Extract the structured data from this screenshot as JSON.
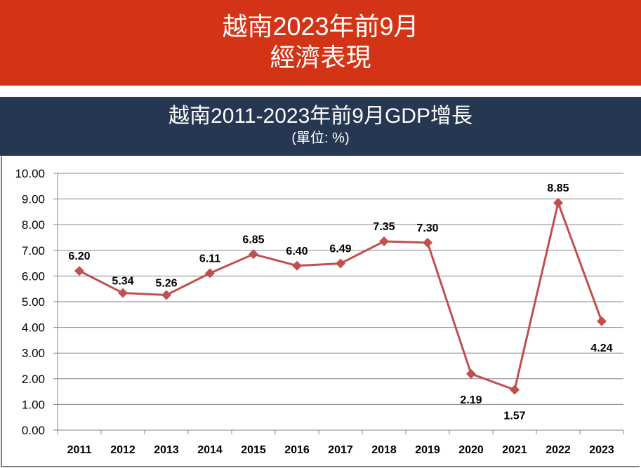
{
  "banner": {
    "line1": "越南2023年前9月",
    "line2": "經濟表現"
  },
  "chart_data": {
    "type": "line",
    "title": "越南2011-2023年前9月GDP增長",
    "subtitle": "(單位: %)",
    "categories": [
      "2011",
      "2012",
      "2013",
      "2014",
      "2015",
      "2016",
      "2017",
      "2018",
      "2019",
      "2020",
      "2021",
      "2022",
      "2023"
    ],
    "values": [
      6.2,
      5.34,
      5.26,
      6.11,
      6.85,
      6.4,
      6.49,
      7.35,
      7.3,
      2.19,
      1.57,
      8.85,
      4.24
    ],
    "labels": [
      "6.20",
      "5.34",
      "5.26",
      "6.11",
      "6.85",
      "6.40",
      "6.49",
      "7.35",
      "7.30",
      "2.19",
      "1.57",
      "8.85",
      "4.24"
    ],
    "yticks": [
      "0.00",
      "1.00",
      "2.00",
      "3.00",
      "4.00",
      "5.00",
      "6.00",
      "7.00",
      "8.00",
      "9.00",
      "10.00"
    ],
    "ylim": [
      0,
      10
    ],
    "grid": true,
    "series_color": "#c0504d",
    "marker": "diamond"
  }
}
